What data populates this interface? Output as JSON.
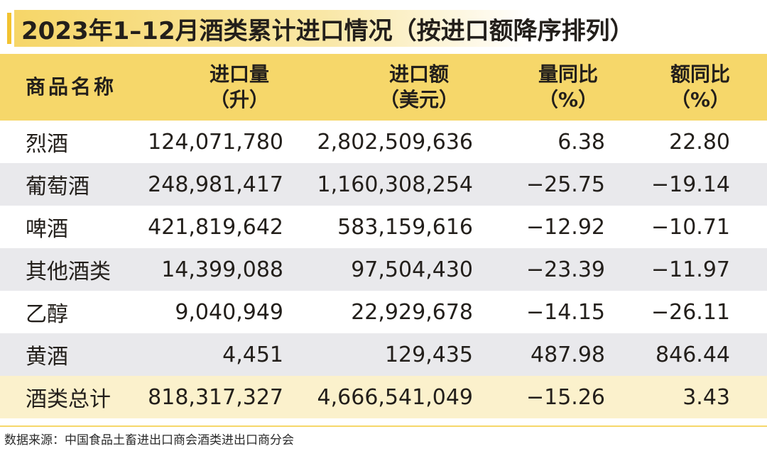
{
  "title": "2023年1–12月酒类累计进口情况（按进口额降序排列）",
  "header": {
    "name": "商品名称",
    "volume_label": "进口量",
    "volume_unit": "（升）",
    "value_label": "进口额",
    "value_unit": "（美元）",
    "vol_yoy_label": "量同比",
    "vol_yoy_unit": "（%）",
    "val_yoy_label": "额同比",
    "val_yoy_unit": "（%）"
  },
  "rows": [
    {
      "name": "烈酒",
      "volume": "124,071,780",
      "value": "2,802,509,636",
      "vol_yoy": "6.38",
      "val_yoy": "22.80"
    },
    {
      "name": "葡萄酒",
      "volume": "248,981,417",
      "value": "1,160,308,254",
      "vol_yoy": "−25.75",
      "val_yoy": "−19.14"
    },
    {
      "name": "啤酒",
      "volume": "421,819,642",
      "value": "583,159,616",
      "vol_yoy": "−12.92",
      "val_yoy": "−10.71"
    },
    {
      "name": "其他酒类",
      "volume": "14,399,088",
      "value": "97,504,430",
      "vol_yoy": "−23.39",
      "val_yoy": "−11.97"
    },
    {
      "name": "乙醇",
      "volume": "9,040,949",
      "value": "22,929,678",
      "vol_yoy": "−14.15",
      "val_yoy": "−26.11"
    },
    {
      "name": "黄酒",
      "volume": "4,451",
      "value": "129,435",
      "vol_yoy": "487.98",
      "val_yoy": "846.44"
    }
  ],
  "total": {
    "name": "酒类总计",
    "volume": "818,317,327",
    "value": "4,666,541,049",
    "vol_yoy": "−15.26",
    "val_yoy": "3.43"
  },
  "source": "数据来源：中国食品土畜进出口商会酒类进出口商分会",
  "colors": {
    "accent": "#f6d76a",
    "stripe": "#e9e9ec",
    "total_row": "#fbf1cc",
    "title_bar": "#f2c230"
  }
}
